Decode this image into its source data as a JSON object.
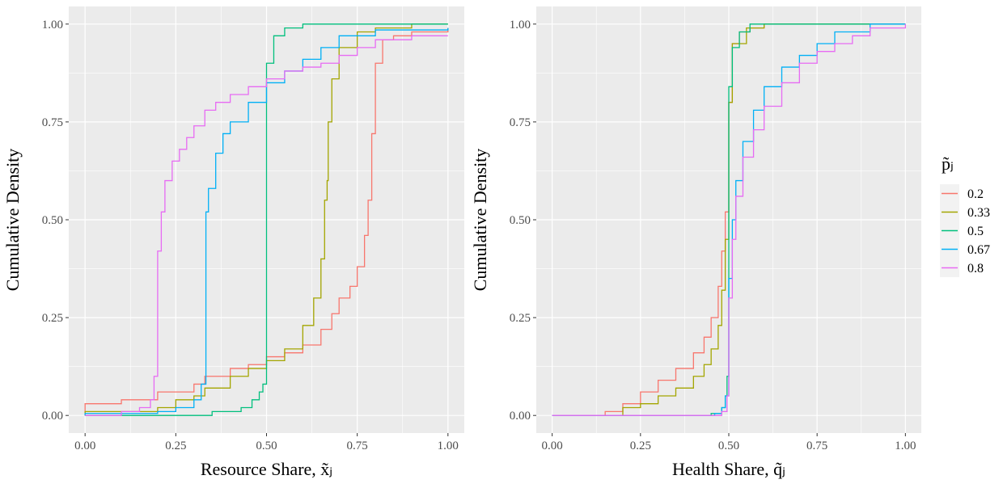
{
  "legend": {
    "title": "p̃ⱼ",
    "position": "right",
    "entries": [
      {
        "label": "0.2",
        "color": "#F8766D"
      },
      {
        "label": "0.33",
        "color": "#A3A500"
      },
      {
        "label": "0.5",
        "color": "#00BF7D"
      },
      {
        "label": "0.67",
        "color": "#00B0F6"
      },
      {
        "label": "0.8",
        "color": "#E76BF3"
      }
    ]
  },
  "chart_data": [
    {
      "type": "line",
      "subtype": "empirical-cdf (step)",
      "xlabel": "Resource Share, x̃ⱼ",
      "ylabel": "Cumulative Density",
      "xlim": [
        0,
        1
      ],
      "ylim": [
        0,
        1
      ],
      "xticks": [
        "0.00",
        "0.25",
        "0.50",
        "0.75",
        "1.00"
      ],
      "yticks": [
        "0.00",
        "0.25",
        "0.50",
        "0.75",
        "1.00"
      ],
      "grid": true,
      "series": [
        {
          "name": "0.2",
          "color": "#F8766D",
          "points": [
            [
              0,
              0
            ],
            [
              0,
              0.03
            ],
            [
              0.05,
              0.03
            ],
            [
              0.1,
              0.04
            ],
            [
              0.2,
              0.06
            ],
            [
              0.3,
              0.08
            ],
            [
              0.33,
              0.1
            ],
            [
              0.4,
              0.12
            ],
            [
              0.45,
              0.13
            ],
            [
              0.5,
              0.15
            ],
            [
              0.55,
              0.16
            ],
            [
              0.6,
              0.18
            ],
            [
              0.65,
              0.22
            ],
            [
              0.68,
              0.26
            ],
            [
              0.7,
              0.3
            ],
            [
              0.73,
              0.33
            ],
            [
              0.75,
              0.38
            ],
            [
              0.77,
              0.46
            ],
            [
              0.78,
              0.55
            ],
            [
              0.79,
              0.63
            ],
            [
              0.79,
              0.72
            ],
            [
              0.8,
              0.8
            ],
            [
              0.8,
              0.9
            ],
            [
              0.82,
              0.96
            ],
            [
              0.85,
              0.97
            ],
            [
              0.9,
              0.98
            ],
            [
              1,
              0.99
            ]
          ]
        },
        {
          "name": "0.33",
          "color": "#A3A500",
          "points": [
            [
              0,
              0
            ],
            [
              0,
              0.01
            ],
            [
              0.1,
              0.01
            ],
            [
              0.2,
              0.02
            ],
            [
              0.25,
              0.04
            ],
            [
              0.3,
              0.05
            ],
            [
              0.33,
              0.07
            ],
            [
              0.4,
              0.1
            ],
            [
              0.45,
              0.12
            ],
            [
              0.5,
              0.14
            ],
            [
              0.55,
              0.17
            ],
            [
              0.6,
              0.23
            ],
            [
              0.63,
              0.3
            ],
            [
              0.65,
              0.4
            ],
            [
              0.66,
              0.55
            ],
            [
              0.667,
              0.6
            ],
            [
              0.67,
              0.75
            ],
            [
              0.68,
              0.86
            ],
            [
              0.7,
              0.94
            ],
            [
              0.75,
              0.98
            ],
            [
              0.8,
              0.99
            ],
            [
              0.9,
              1
            ],
            [
              1,
              1
            ]
          ]
        },
        {
          "name": "0.5",
          "color": "#00BF7D",
          "points": [
            [
              0,
              0
            ],
            [
              0.25,
              0
            ],
            [
              0.35,
              0.01
            ],
            [
              0.4,
              0.01
            ],
            [
              0.43,
              0.02
            ],
            [
              0.46,
              0.04
            ],
            [
              0.48,
              0.06
            ],
            [
              0.49,
              0.08
            ],
            [
              0.5,
              0.15
            ],
            [
              0.5,
              0.8
            ],
            [
              0.5,
              0.9
            ],
            [
              0.52,
              0.97
            ],
            [
              0.55,
              0.99
            ],
            [
              0.6,
              1
            ],
            [
              1,
              1
            ]
          ]
        },
        {
          "name": "0.67",
          "color": "#00B0F6",
          "points": [
            [
              0,
              0
            ],
            [
              0,
              0.005
            ],
            [
              0.1,
              0.005
            ],
            [
              0.2,
              0.01
            ],
            [
              0.25,
              0.02
            ],
            [
              0.3,
              0.04
            ],
            [
              0.32,
              0.08
            ],
            [
              0.333,
              0.12
            ],
            [
              0.333,
              0.52
            ],
            [
              0.34,
              0.58
            ],
            [
              0.36,
              0.67
            ],
            [
              0.38,
              0.72
            ],
            [
              0.4,
              0.75
            ],
            [
              0.45,
              0.8
            ],
            [
              0.5,
              0.85
            ],
            [
              0.55,
              0.88
            ],
            [
              0.6,
              0.91
            ],
            [
              0.65,
              0.94
            ],
            [
              0.7,
              0.97
            ],
            [
              0.8,
              0.985
            ],
            [
              1,
              0.99
            ]
          ]
        },
        {
          "name": "0.8",
          "color": "#E76BF3",
          "points": [
            [
              0,
              0
            ],
            [
              0.05,
              0
            ],
            [
              0.1,
              0.01
            ],
            [
              0.15,
              0.02
            ],
            [
              0.18,
              0.04
            ],
            [
              0.19,
              0.1
            ],
            [
              0.2,
              0.2
            ],
            [
              0.2,
              0.42
            ],
            [
              0.21,
              0.52
            ],
            [
              0.22,
              0.6
            ],
            [
              0.24,
              0.65
            ],
            [
              0.26,
              0.68
            ],
            [
              0.28,
              0.71
            ],
            [
              0.3,
              0.74
            ],
            [
              0.33,
              0.78
            ],
            [
              0.36,
              0.8
            ],
            [
              0.4,
              0.82
            ],
            [
              0.45,
              0.84
            ],
            [
              0.5,
              0.86
            ],
            [
              0.55,
              0.88
            ],
            [
              0.6,
              0.89
            ],
            [
              0.65,
              0.9
            ],
            [
              0.7,
              0.92
            ],
            [
              0.75,
              0.94
            ],
            [
              0.8,
              0.96
            ],
            [
              0.9,
              0.97
            ],
            [
              1,
              0.97
            ]
          ]
        }
      ]
    },
    {
      "type": "line",
      "subtype": "empirical-cdf (step)",
      "xlabel": "Health Share, q̃ⱼ",
      "ylabel": "Cumulative Density",
      "xlim": [
        0,
        1
      ],
      "ylim": [
        0,
        1
      ],
      "xticks": [
        "0.00",
        "0.25",
        "0.50",
        "0.75",
        "1.00"
      ],
      "yticks": [
        "0.00",
        "0.25",
        "0.50",
        "0.75",
        "1.00"
      ],
      "grid": true,
      "series": [
        {
          "name": "0.2",
          "color": "#F8766D",
          "points": [
            [
              0,
              0
            ],
            [
              0.1,
              0
            ],
            [
              0.15,
              0.01
            ],
            [
              0.2,
              0.03
            ],
            [
              0.25,
              0.06
            ],
            [
              0.3,
              0.09
            ],
            [
              0.35,
              0.12
            ],
            [
              0.4,
              0.16
            ],
            [
              0.43,
              0.2
            ],
            [
              0.45,
              0.25
            ],
            [
              0.47,
              0.33
            ],
            [
              0.48,
              0.42
            ],
            [
              0.49,
              0.52
            ],
            [
              0.5,
              0.6
            ],
            [
              0.5,
              0.8
            ],
            [
              0.51,
              0.95
            ],
            [
              0.53,
              0.98
            ],
            [
              0.56,
              0.99
            ],
            [
              0.6,
              1
            ],
            [
              1,
              1
            ]
          ]
        },
        {
          "name": "0.33",
          "color": "#A3A500",
          "points": [
            [
              0,
              0
            ],
            [
              0.15,
              0
            ],
            [
              0.2,
              0.02
            ],
            [
              0.25,
              0.03
            ],
            [
              0.3,
              0.05
            ],
            [
              0.35,
              0.07
            ],
            [
              0.4,
              0.1
            ],
            [
              0.43,
              0.13
            ],
            [
              0.45,
              0.17
            ],
            [
              0.47,
              0.23
            ],
            [
              0.48,
              0.32
            ],
            [
              0.49,
              0.45
            ],
            [
              0.5,
              0.55
            ],
            [
              0.5,
              0.8
            ],
            [
              0.51,
              0.95
            ],
            [
              0.55,
              0.99
            ],
            [
              0.6,
              1
            ],
            [
              1,
              1
            ]
          ]
        },
        {
          "name": "0.5",
          "color": "#00BF7D",
          "points": [
            [
              0,
              0
            ],
            [
              0.4,
              0
            ],
            [
              0.45,
              0.005
            ],
            [
              0.48,
              0.02
            ],
            [
              0.49,
              0.05
            ],
            [
              0.495,
              0.1
            ],
            [
              0.5,
              0.4
            ],
            [
              0.5,
              0.84
            ],
            [
              0.51,
              0.94
            ],
            [
              0.53,
              0.98
            ],
            [
              0.56,
              1
            ],
            [
              1,
              1
            ]
          ]
        },
        {
          "name": "0.67",
          "color": "#00B0F6",
          "points": [
            [
              0,
              0
            ],
            [
              0.4,
              0
            ],
            [
              0.46,
              0.005
            ],
            [
              0.48,
              0.02
            ],
            [
              0.49,
              0.05
            ],
            [
              0.5,
              0.35
            ],
            [
              0.51,
              0.5
            ],
            [
              0.52,
              0.6
            ],
            [
              0.54,
              0.7
            ],
            [
              0.57,
              0.78
            ],
            [
              0.6,
              0.84
            ],
            [
              0.65,
              0.89
            ],
            [
              0.7,
              0.92
            ],
            [
              0.75,
              0.95
            ],
            [
              0.8,
              0.98
            ],
            [
              0.9,
              1
            ],
            [
              1,
              1
            ]
          ]
        },
        {
          "name": "0.8",
          "color": "#E76BF3",
          "points": [
            [
              0,
              0
            ],
            [
              0.45,
              0
            ],
            [
              0.48,
              0.01
            ],
            [
              0.495,
              0.05
            ],
            [
              0.5,
              0.1
            ],
            [
              0.5,
              0.3
            ],
            [
              0.51,
              0.45
            ],
            [
              0.52,
              0.56
            ],
            [
              0.54,
              0.66
            ],
            [
              0.57,
              0.73
            ],
            [
              0.6,
              0.79
            ],
            [
              0.65,
              0.85
            ],
            [
              0.7,
              0.9
            ],
            [
              0.75,
              0.93
            ],
            [
              0.8,
              0.95
            ],
            [
              0.85,
              0.97
            ],
            [
              0.9,
              0.99
            ],
            [
              1,
              1
            ]
          ]
        }
      ]
    }
  ]
}
